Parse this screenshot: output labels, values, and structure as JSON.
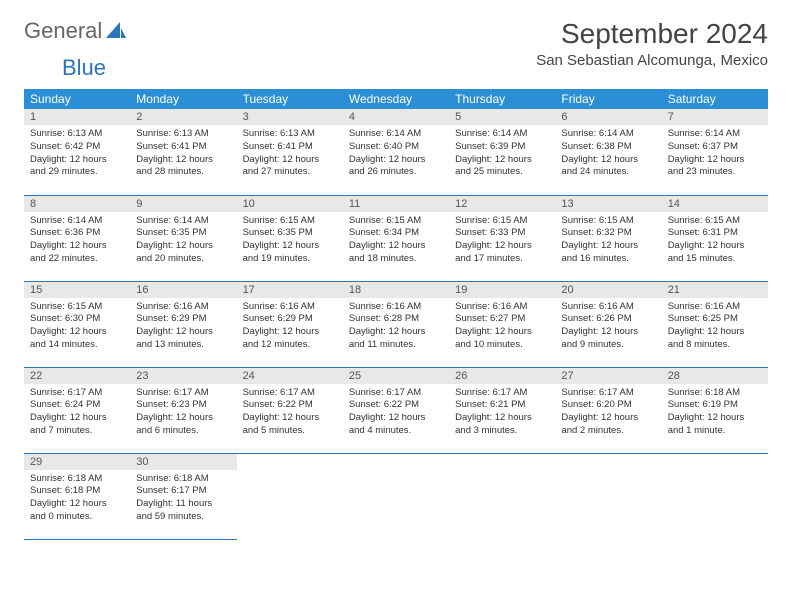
{
  "logo": {
    "text1": "General",
    "text2": "Blue"
  },
  "title": "September 2024",
  "location": "San Sebastian Alcomunga, Mexico",
  "colors": {
    "header_bg": "#2a8fd4",
    "header_text": "#ffffff",
    "daynum_bg": "#e8e8e8",
    "row_border": "#2a75bb",
    "logo_accent": "#2a75bb"
  },
  "weekdays": [
    "Sunday",
    "Monday",
    "Tuesday",
    "Wednesday",
    "Thursday",
    "Friday",
    "Saturday"
  ],
  "days": [
    {
      "n": "1",
      "sr": "Sunrise: 6:13 AM",
      "ss": "Sunset: 6:42 PM",
      "d1": "Daylight: 12 hours",
      "d2": "and 29 minutes."
    },
    {
      "n": "2",
      "sr": "Sunrise: 6:13 AM",
      "ss": "Sunset: 6:41 PM",
      "d1": "Daylight: 12 hours",
      "d2": "and 28 minutes."
    },
    {
      "n": "3",
      "sr": "Sunrise: 6:13 AM",
      "ss": "Sunset: 6:41 PM",
      "d1": "Daylight: 12 hours",
      "d2": "and 27 minutes."
    },
    {
      "n": "4",
      "sr": "Sunrise: 6:14 AM",
      "ss": "Sunset: 6:40 PM",
      "d1": "Daylight: 12 hours",
      "d2": "and 26 minutes."
    },
    {
      "n": "5",
      "sr": "Sunrise: 6:14 AM",
      "ss": "Sunset: 6:39 PM",
      "d1": "Daylight: 12 hours",
      "d2": "and 25 minutes."
    },
    {
      "n": "6",
      "sr": "Sunrise: 6:14 AM",
      "ss": "Sunset: 6:38 PM",
      "d1": "Daylight: 12 hours",
      "d2": "and 24 minutes."
    },
    {
      "n": "7",
      "sr": "Sunrise: 6:14 AM",
      "ss": "Sunset: 6:37 PM",
      "d1": "Daylight: 12 hours",
      "d2": "and 23 minutes."
    },
    {
      "n": "8",
      "sr": "Sunrise: 6:14 AM",
      "ss": "Sunset: 6:36 PM",
      "d1": "Daylight: 12 hours",
      "d2": "and 22 minutes."
    },
    {
      "n": "9",
      "sr": "Sunrise: 6:14 AM",
      "ss": "Sunset: 6:35 PM",
      "d1": "Daylight: 12 hours",
      "d2": "and 20 minutes."
    },
    {
      "n": "10",
      "sr": "Sunrise: 6:15 AM",
      "ss": "Sunset: 6:35 PM",
      "d1": "Daylight: 12 hours",
      "d2": "and 19 minutes."
    },
    {
      "n": "11",
      "sr": "Sunrise: 6:15 AM",
      "ss": "Sunset: 6:34 PM",
      "d1": "Daylight: 12 hours",
      "d2": "and 18 minutes."
    },
    {
      "n": "12",
      "sr": "Sunrise: 6:15 AM",
      "ss": "Sunset: 6:33 PM",
      "d1": "Daylight: 12 hours",
      "d2": "and 17 minutes."
    },
    {
      "n": "13",
      "sr": "Sunrise: 6:15 AM",
      "ss": "Sunset: 6:32 PM",
      "d1": "Daylight: 12 hours",
      "d2": "and 16 minutes."
    },
    {
      "n": "14",
      "sr": "Sunrise: 6:15 AM",
      "ss": "Sunset: 6:31 PM",
      "d1": "Daylight: 12 hours",
      "d2": "and 15 minutes."
    },
    {
      "n": "15",
      "sr": "Sunrise: 6:15 AM",
      "ss": "Sunset: 6:30 PM",
      "d1": "Daylight: 12 hours",
      "d2": "and 14 minutes."
    },
    {
      "n": "16",
      "sr": "Sunrise: 6:16 AM",
      "ss": "Sunset: 6:29 PM",
      "d1": "Daylight: 12 hours",
      "d2": "and 13 minutes."
    },
    {
      "n": "17",
      "sr": "Sunrise: 6:16 AM",
      "ss": "Sunset: 6:29 PM",
      "d1": "Daylight: 12 hours",
      "d2": "and 12 minutes."
    },
    {
      "n": "18",
      "sr": "Sunrise: 6:16 AM",
      "ss": "Sunset: 6:28 PM",
      "d1": "Daylight: 12 hours",
      "d2": "and 11 minutes."
    },
    {
      "n": "19",
      "sr": "Sunrise: 6:16 AM",
      "ss": "Sunset: 6:27 PM",
      "d1": "Daylight: 12 hours",
      "d2": "and 10 minutes."
    },
    {
      "n": "20",
      "sr": "Sunrise: 6:16 AM",
      "ss": "Sunset: 6:26 PM",
      "d1": "Daylight: 12 hours",
      "d2": "and 9 minutes."
    },
    {
      "n": "21",
      "sr": "Sunrise: 6:16 AM",
      "ss": "Sunset: 6:25 PM",
      "d1": "Daylight: 12 hours",
      "d2": "and 8 minutes."
    },
    {
      "n": "22",
      "sr": "Sunrise: 6:17 AM",
      "ss": "Sunset: 6:24 PM",
      "d1": "Daylight: 12 hours",
      "d2": "and 7 minutes."
    },
    {
      "n": "23",
      "sr": "Sunrise: 6:17 AM",
      "ss": "Sunset: 6:23 PM",
      "d1": "Daylight: 12 hours",
      "d2": "and 6 minutes."
    },
    {
      "n": "24",
      "sr": "Sunrise: 6:17 AM",
      "ss": "Sunset: 6:22 PM",
      "d1": "Daylight: 12 hours",
      "d2": "and 5 minutes."
    },
    {
      "n": "25",
      "sr": "Sunrise: 6:17 AM",
      "ss": "Sunset: 6:22 PM",
      "d1": "Daylight: 12 hours",
      "d2": "and 4 minutes."
    },
    {
      "n": "26",
      "sr": "Sunrise: 6:17 AM",
      "ss": "Sunset: 6:21 PM",
      "d1": "Daylight: 12 hours",
      "d2": "and 3 minutes."
    },
    {
      "n": "27",
      "sr": "Sunrise: 6:17 AM",
      "ss": "Sunset: 6:20 PM",
      "d1": "Daylight: 12 hours",
      "d2": "and 2 minutes."
    },
    {
      "n": "28",
      "sr": "Sunrise: 6:18 AM",
      "ss": "Sunset: 6:19 PM",
      "d1": "Daylight: 12 hours",
      "d2": "and 1 minute."
    },
    {
      "n": "29",
      "sr": "Sunrise: 6:18 AM",
      "ss": "Sunset: 6:18 PM",
      "d1": "Daylight: 12 hours",
      "d2": "and 0 minutes."
    },
    {
      "n": "30",
      "sr": "Sunrise: 6:18 AM",
      "ss": "Sunset: 6:17 PM",
      "d1": "Daylight: 11 hours",
      "d2": "and 59 minutes."
    }
  ]
}
